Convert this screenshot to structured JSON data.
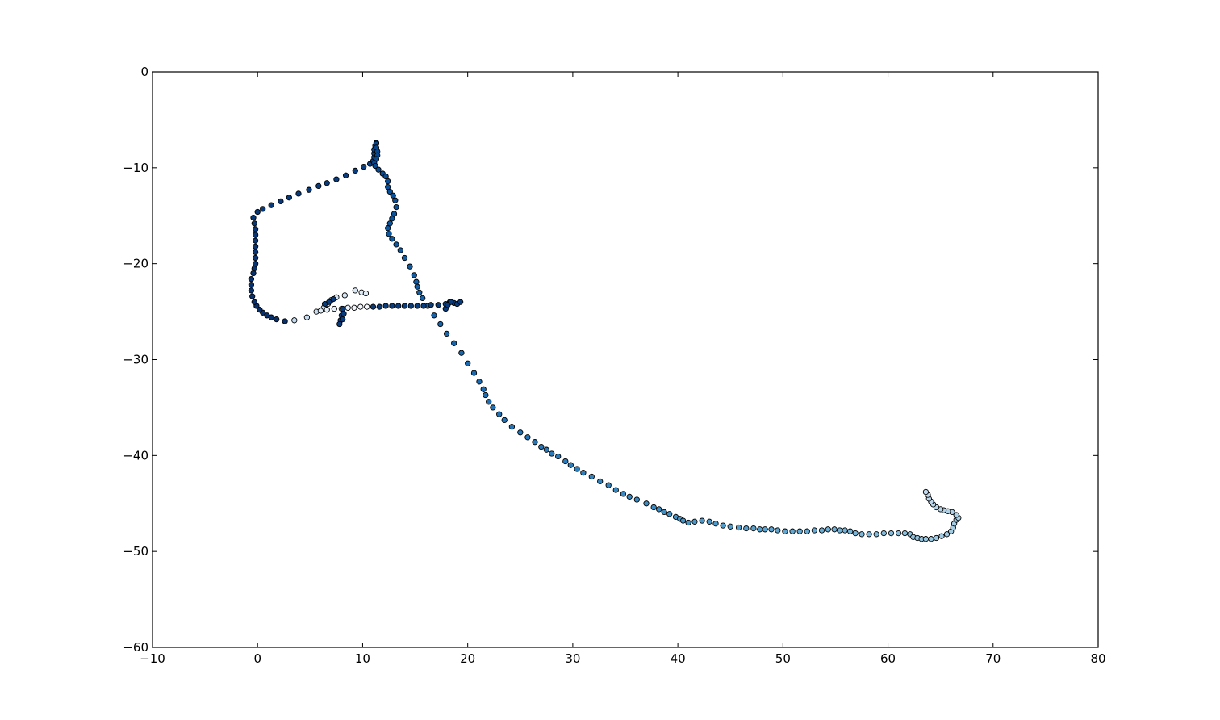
{
  "chart_data": {
    "type": "scatter",
    "title": "",
    "xlabel": "",
    "ylabel": "",
    "xlim": [
      -10,
      80
    ],
    "ylim": [
      -60,
      0
    ],
    "x_ticks": [
      -10,
      0,
      10,
      20,
      30,
      40,
      50,
      60,
      70,
      80
    ],
    "y_ticks": [
      0,
      -10,
      -20,
      -30,
      -40,
      -50,
      -60
    ],
    "x_tick_labels": [
      "−10",
      "0",
      "10",
      "20",
      "30",
      "40",
      "50",
      "60",
      "70",
      "80"
    ],
    "y_tick_labels": [
      "0",
      "−10",
      "−20",
      "−30",
      "−40",
      "−50",
      "−60"
    ],
    "grid": false,
    "legend": "none",
    "marker": "circle",
    "marker_edge_color": "#000000",
    "color_ramp": [
      "#08306b",
      "#08519c",
      "#2171b5",
      "#4292c6",
      "#6baed6",
      "#9ecae1",
      "#c6dbef",
      "#f7fbff"
    ],
    "color_encoding": "point order along track (dark blue at start, white at end)",
    "points": [
      [
        2.6,
        -26.0
      ],
      [
        1.8,
        -25.8
      ],
      [
        1.3,
        -25.6
      ],
      [
        0.9,
        -25.4
      ],
      [
        0.5,
        -25.1
      ],
      [
        0.2,
        -24.8
      ],
      [
        -0.1,
        -24.4
      ],
      [
        -0.3,
        -24.0
      ],
      [
        -0.5,
        -23.4
      ],
      [
        -0.6,
        -22.8
      ],
      [
        -0.6,
        -22.2
      ],
      [
        -0.6,
        -21.6
      ],
      [
        -0.4,
        -21.0
      ],
      [
        -0.3,
        -20.5
      ],
      [
        -0.2,
        -20.0
      ],
      [
        -0.2,
        -19.4
      ],
      [
        -0.2,
        -18.8
      ],
      [
        -0.2,
        -18.2
      ],
      [
        -0.2,
        -17.6
      ],
      [
        -0.2,
        -17.0
      ],
      [
        -0.2,
        -16.4
      ],
      [
        -0.3,
        -15.8
      ],
      [
        -0.4,
        -15.2
      ],
      [
        0.0,
        -14.6
      ],
      [
        0.5,
        -14.3
      ],
      [
        1.3,
        -13.9
      ],
      [
        2.2,
        -13.5
      ],
      [
        3.0,
        -13.1
      ],
      [
        3.9,
        -12.7
      ],
      [
        4.9,
        -12.3
      ],
      [
        5.8,
        -11.9
      ],
      [
        6.6,
        -11.6
      ],
      [
        7.5,
        -11.2
      ],
      [
        8.4,
        -10.8
      ],
      [
        9.3,
        -10.3
      ],
      [
        10.1,
        -9.9
      ],
      [
        10.7,
        -9.6
      ],
      [
        11.0,
        -9.3
      ],
      [
        11.1,
        -8.9
      ],
      [
        11.1,
        -8.5
      ],
      [
        11.1,
        -8.1
      ],
      [
        11.2,
        -7.7
      ],
      [
        11.3,
        -7.4
      ],
      [
        11.3,
        -7.5
      ],
      [
        11.3,
        -7.9
      ],
      [
        11.4,
        -8.3
      ],
      [
        11.4,
        -8.7
      ],
      [
        11.3,
        -9.1
      ],
      [
        11.1,
        -9.5
      ],
      [
        11.2,
        -9.8
      ],
      [
        11.5,
        -10.2
      ],
      [
        11.9,
        -10.6
      ],
      [
        12.2,
        -10.9
      ],
      [
        12.4,
        -11.4
      ],
      [
        12.4,
        -12.0
      ],
      [
        12.6,
        -12.5
      ],
      [
        12.9,
        -12.9
      ],
      [
        13.1,
        -13.4
      ],
      [
        13.2,
        -14.1
      ],
      [
        13.0,
        -14.8
      ],
      [
        12.8,
        -15.3
      ],
      [
        12.6,
        -15.8
      ],
      [
        12.4,
        -16.3
      ],
      [
        12.5,
        -16.9
      ],
      [
        12.8,
        -17.4
      ],
      [
        13.2,
        -18.0
      ],
      [
        13.6,
        -18.6
      ],
      [
        14.0,
        -19.4
      ],
      [
        14.5,
        -20.3
      ],
      [
        14.9,
        -21.2
      ],
      [
        15.1,
        -21.9
      ],
      [
        15.2,
        -22.4
      ],
      [
        15.4,
        -23.0
      ],
      [
        15.7,
        -23.6
      ],
      [
        16.2,
        -24.4
      ],
      [
        16.8,
        -25.4
      ],
      [
        17.4,
        -26.3
      ],
      [
        18.0,
        -27.3
      ],
      [
        18.7,
        -28.3
      ],
      [
        19.4,
        -29.3
      ],
      [
        20.0,
        -30.4
      ],
      [
        20.6,
        -31.4
      ],
      [
        21.1,
        -32.3
      ],
      [
        21.5,
        -33.1
      ],
      [
        21.7,
        -33.7
      ],
      [
        22.0,
        -34.4
      ],
      [
        22.4,
        -35.0
      ],
      [
        23.0,
        -35.7
      ],
      [
        23.5,
        -36.3
      ],
      [
        24.2,
        -37.0
      ],
      [
        25.0,
        -37.6
      ],
      [
        25.7,
        -38.1
      ],
      [
        26.4,
        -38.6
      ],
      [
        27.0,
        -39.1
      ],
      [
        27.5,
        -39.4
      ],
      [
        28.0,
        -39.8
      ],
      [
        28.6,
        -40.1
      ],
      [
        29.3,
        -40.6
      ],
      [
        29.8,
        -41.0
      ],
      [
        30.4,
        -41.4
      ],
      [
        31.0,
        -41.8
      ],
      [
        31.8,
        -42.2
      ],
      [
        32.6,
        -42.7
      ],
      [
        33.4,
        -43.1
      ],
      [
        34.1,
        -43.6
      ],
      [
        34.8,
        -44.0
      ],
      [
        35.4,
        -44.3
      ],
      [
        36.1,
        -44.6
      ],
      [
        37.0,
        -45.0
      ],
      [
        37.7,
        -45.4
      ],
      [
        38.2,
        -45.6
      ],
      [
        38.7,
        -45.9
      ],
      [
        39.2,
        -46.1
      ],
      [
        39.8,
        -46.4
      ],
      [
        40.2,
        -46.6
      ],
      [
        40.5,
        -46.8
      ],
      [
        41.0,
        -47.0
      ],
      [
        41.6,
        -46.9
      ],
      [
        42.3,
        -46.8
      ],
      [
        43.0,
        -46.9
      ],
      [
        43.6,
        -47.1
      ],
      [
        44.3,
        -47.3
      ],
      [
        45.0,
        -47.4
      ],
      [
        45.8,
        -47.5
      ],
      [
        46.5,
        -47.6
      ],
      [
        47.2,
        -47.6
      ],
      [
        47.8,
        -47.7
      ],
      [
        48.3,
        -47.7
      ],
      [
        48.9,
        -47.7
      ],
      [
        49.5,
        -47.8
      ],
      [
        50.2,
        -47.9
      ],
      [
        50.9,
        -47.9
      ],
      [
        51.6,
        -47.9
      ],
      [
        52.3,
        -47.9
      ],
      [
        53.0,
        -47.8
      ],
      [
        53.7,
        -47.8
      ],
      [
        54.3,
        -47.7
      ],
      [
        54.9,
        -47.7
      ],
      [
        55.4,
        -47.8
      ],
      [
        55.9,
        -47.8
      ],
      [
        56.4,
        -47.9
      ],
      [
        56.9,
        -48.1
      ],
      [
        57.5,
        -48.2
      ],
      [
        58.2,
        -48.2
      ],
      [
        58.9,
        -48.2
      ],
      [
        59.6,
        -48.1
      ],
      [
        60.3,
        -48.1
      ],
      [
        61.0,
        -48.1
      ],
      [
        61.6,
        -48.1
      ],
      [
        62.1,
        -48.2
      ],
      [
        62.4,
        -48.5
      ],
      [
        62.8,
        -48.6
      ],
      [
        63.2,
        -48.7
      ],
      [
        63.6,
        -48.7
      ],
      [
        64.1,
        -48.7
      ],
      [
        64.6,
        -48.6
      ],
      [
        65.1,
        -48.4
      ],
      [
        65.6,
        -48.2
      ],
      [
        66.0,
        -47.9
      ],
      [
        66.2,
        -47.5
      ],
      [
        66.3,
        -47.1
      ],
      [
        66.5,
        -46.7
      ],
      [
        66.7,
        -46.5
      ],
      [
        66.5,
        -46.2
      ],
      [
        66.1,
        -45.9
      ],
      [
        65.7,
        -45.8
      ],
      [
        65.3,
        -45.7
      ],
      [
        65.0,
        -45.6
      ],
      [
        64.6,
        -45.4
      ],
      [
        64.3,
        -45.1
      ],
      [
        64.1,
        -44.8
      ],
      [
        63.9,
        -44.5
      ],
      [
        63.8,
        -44.1
      ],
      [
        63.6,
        -43.8
      ],
      [
        3.5,
        -25.9
      ],
      [
        4.7,
        -25.6
      ],
      [
        5.6,
        -25.0
      ],
      [
        6.3,
        -24.6
      ],
      [
        6.7,
        -24.2
      ],
      [
        7.0,
        -23.8
      ],
      [
        7.5,
        -23.5
      ],
      [
        8.3,
        -23.3
      ],
      [
        9.3,
        -22.8
      ],
      [
        9.9,
        -23.0
      ],
      [
        10.3,
        -23.1
      ],
      [
        6.0,
        -24.9
      ],
      [
        6.6,
        -24.8
      ],
      [
        7.3,
        -24.7
      ],
      [
        8.0,
        -24.7
      ],
      [
        8.6,
        -24.6
      ],
      [
        9.2,
        -24.6
      ],
      [
        9.8,
        -24.5
      ],
      [
        10.4,
        -24.5
      ],
      [
        11.0,
        -24.5
      ],
      [
        11.6,
        -24.5
      ],
      [
        12.2,
        -24.4
      ],
      [
        12.8,
        -24.4
      ],
      [
        13.4,
        -24.4
      ],
      [
        14.0,
        -24.4
      ],
      [
        14.6,
        -24.4
      ],
      [
        15.2,
        -24.4
      ],
      [
        15.8,
        -24.4
      ],
      [
        16.5,
        -24.3
      ],
      [
        17.2,
        -24.3
      ],
      [
        17.9,
        -24.2
      ],
      [
        18.3,
        -24.0
      ],
      [
        18.7,
        -24.1
      ],
      [
        19.0,
        -24.2
      ],
      [
        19.3,
        -24.0
      ],
      [
        8.0,
        -25.4
      ],
      [
        7.9,
        -25.9
      ],
      [
        7.8,
        -26.3
      ],
      [
        8.1,
        -25.8
      ],
      [
        8.2,
        -25.2
      ],
      [
        8.1,
        -24.7
      ],
      [
        17.9,
        -24.7
      ],
      [
        18.1,
        -24.3
      ],
      [
        18.4,
        -24.0
      ],
      [
        7.2,
        -23.7
      ],
      [
        6.8,
        -24.0
      ],
      [
        6.4,
        -24.2
      ]
    ]
  }
}
